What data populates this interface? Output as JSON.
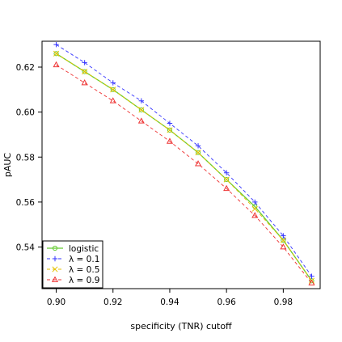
{
  "chart_data": {
    "type": "line",
    "xlabel": "specificity (TNR) cutoff",
    "ylabel": "pAUC",
    "xlim": [
      0.895,
      0.993
    ],
    "ylim": [
      0.5215,
      0.6315
    ],
    "xticks": [
      0.9,
      0.92,
      0.94,
      0.96,
      0.98
    ],
    "xtick_labels": [
      "0.90",
      "0.92",
      "0.94",
      "0.96",
      "0.98"
    ],
    "yticks": [
      0.54,
      0.56,
      0.58,
      0.6,
      0.62
    ],
    "ytick_labels": [
      "0.54",
      "0.56",
      "0.58",
      "0.60",
      "0.62"
    ],
    "x": [
      0.9,
      0.91,
      0.92,
      0.93,
      0.94,
      0.95,
      0.96,
      0.97,
      0.98,
      0.99
    ],
    "legend_position": "bottom-left",
    "series": [
      {
        "name": "logistic",
        "color": "#66cc33",
        "marker": "circle",
        "dash": "solid",
        "values": [
          0.626,
          0.618,
          0.61,
          0.601,
          0.592,
          0.582,
          0.57,
          0.558,
          0.543,
          0.525
        ]
      },
      {
        "name": "λ = 0.1",
        "color": "#3333ff",
        "marker": "plus",
        "dash": "dashed",
        "values": [
          0.63,
          0.622,
          0.613,
          0.605,
          0.595,
          0.585,
          0.573,
          0.56,
          0.545,
          0.527
        ]
      },
      {
        "name": "λ = 0.5",
        "color": "#e6c200",
        "marker": "cross",
        "dash": "dashed",
        "values": [
          0.626,
          0.618,
          0.61,
          0.601,
          0.592,
          0.582,
          0.57,
          0.557,
          0.543,
          0.525
        ]
      },
      {
        "name": "λ = 0.9",
        "color": "#ee3333",
        "marker": "triangle",
        "dash": "dashed",
        "values": [
          0.621,
          0.613,
          0.605,
          0.596,
          0.587,
          0.577,
          0.566,
          0.554,
          0.54,
          0.524
        ]
      }
    ]
  }
}
